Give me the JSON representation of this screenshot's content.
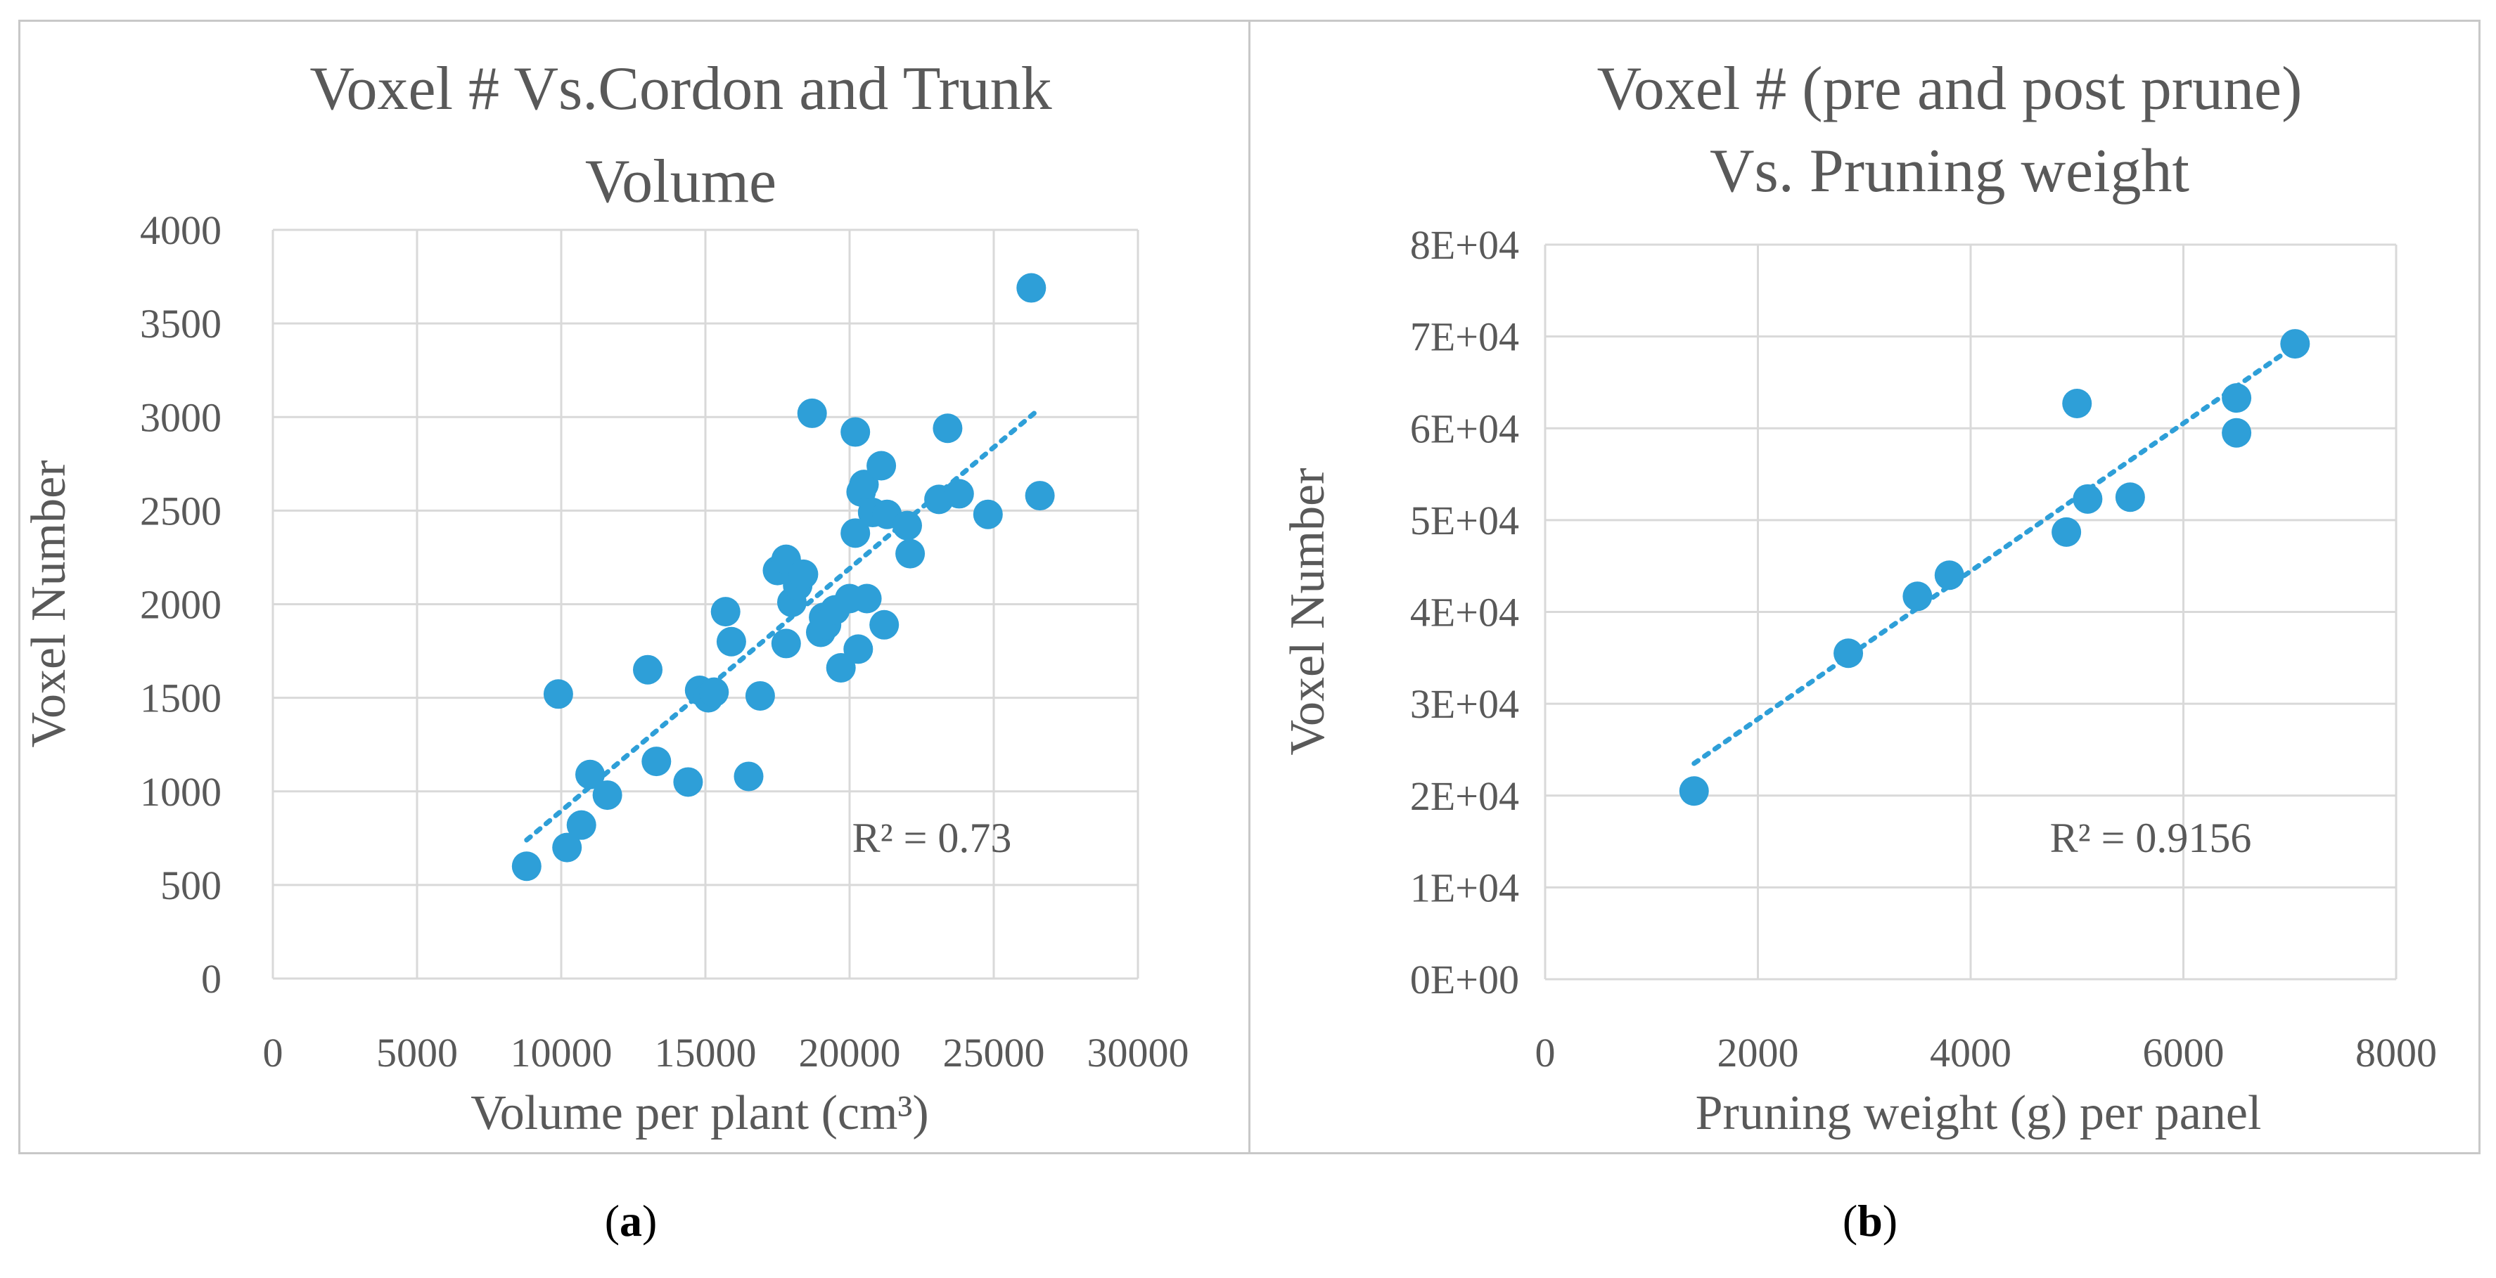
{
  "chart_data": [
    {
      "type": "scatter",
      "title": "Voxel # Vs.Cordon and Trunk Volume",
      "title_lines": [
        "Voxel # Vs.Cordon and Trunk",
        "Volume"
      ],
      "xlabel": "Volume per plant (cm³)",
      "ylabel": "Voxel Number",
      "xlim": [
        0,
        30000
      ],
      "ylim": [
        0,
        4000
      ],
      "x_ticks": [
        0,
        5000,
        10000,
        15000,
        20000,
        25000,
        30000
      ],
      "y_ticks": [
        0,
        500,
        1000,
        1500,
        2000,
        2500,
        3000,
        3500,
        4000
      ],
      "x_tick_labels": [
        "0",
        "5000",
        "10000",
        "15000",
        "20000",
        "25000",
        "30000"
      ],
      "y_tick_labels": [
        "0",
        "500",
        "1000",
        "1500",
        "2000",
        "2500",
        "3000",
        "3500",
        "4000"
      ],
      "grid": true,
      "trendline": {
        "type": "linear",
        "style": "dotted",
        "x": [
          8800,
          26400
        ],
        "y": [
          740,
          3020
        ]
      },
      "annotation": "R² = 0.73",
      "annotation_pos": [
        22000,
        720
      ],
      "series": [
        {
          "x": [
            26300,
            8800,
            10200,
            10700,
            11000,
            11600,
            9900,
            13000,
            13300,
            14400,
            14800,
            15100,
            15300,
            15700,
            15900,
            16500,
            16900,
            17500,
            17800,
            17800,
            18000,
            18200,
            18400,
            18700,
            19000,
            19100,
            19200,
            19500,
            19700,
            20000,
            20200,
            20200,
            20300,
            20400,
            20500,
            20600,
            20800,
            21100,
            21200,
            21300,
            22000,
            22100,
            23100,
            23400,
            23800,
            24800,
            26600
          ],
          "y": [
            3690,
            600,
            700,
            820,
            1090,
            980,
            1520,
            1650,
            1160,
            1050,
            1540,
            1500,
            1530,
            1960,
            1800,
            1080,
            1510,
            2180,
            2240,
            1790,
            2010,
            2100,
            2160,
            3020,
            1850,
            1930,
            1890,
            1970,
            1660,
            2030,
            2920,
            2380,
            1760,
            2600,
            2640,
            2030,
            2490,
            2740,
            1890,
            2480,
            2420,
            2270,
            2560,
            2940,
            2590,
            2480,
            2580
          ],
          "color": "#2e9fd8"
        }
      ]
    },
    {
      "type": "scatter",
      "title": "Voxel # (pre and post prune) Vs. Pruning weight",
      "title_lines": [
        "Voxel # (pre and post prune)",
        "Vs. Pruning weight"
      ],
      "xlabel": "Pruning weight (g) per panel",
      "ylabel": "Voxel Number",
      "xlim": [
        0,
        8000
      ],
      "ylim": [
        0,
        80000
      ],
      "x_ticks": [
        0,
        2000,
        4000,
        6000,
        8000
      ],
      "y_ticks": [
        0,
        10000,
        20000,
        30000,
        40000,
        50000,
        60000,
        70000,
        80000
      ],
      "x_tick_labels": [
        "0",
        "2000",
        "4000",
        "6000",
        "8000"
      ],
      "y_tick_labels": [
        "0E+00",
        "1E+04",
        "2E+04",
        "3E+04",
        "4E+04",
        "5E+04",
        "6E+04",
        "7E+04",
        "8E+04"
      ],
      "grid": true,
      "trendline": {
        "type": "linear",
        "style": "dotted",
        "x": [
          1400,
          7050
        ],
        "y": [
          23500,
          69000
        ]
      },
      "annotation": "R² = 0.9156",
      "annotation_pos": [
        5000,
        16000
      ],
      "series": [
        {
          "x": [
            1400,
            2850,
            3500,
            3800,
            4900,
            5000,
            5100,
            5500,
            6500,
            6500,
            7050
          ],
          "y": [
            20500,
            35500,
            41700,
            44000,
            48700,
            62700,
            52300,
            52500,
            59500,
            63300,
            69200
          ],
          "color": "#2e9fd8"
        }
      ]
    }
  ],
  "captions": [
    "(a)",
    "(b)"
  ]
}
